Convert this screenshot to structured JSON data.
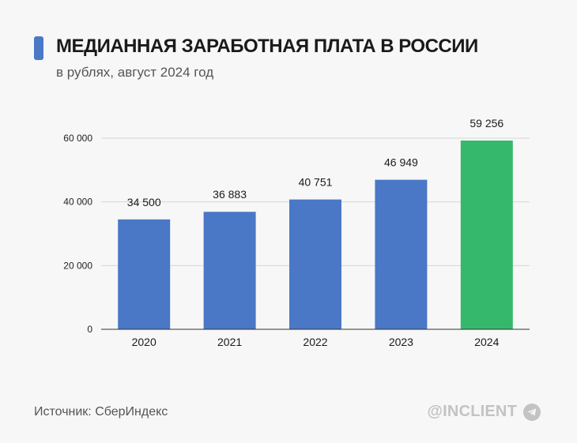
{
  "header": {
    "title": "МЕДИАННАЯ ЗАРАБОТНАЯ ПЛАТА В РОССИИ",
    "subtitle": "в рублях, август 2024 год"
  },
  "footer": {
    "source": "Источник: СберИндекс",
    "watermark": "@INCLIENT",
    "watermark_icon": "telegram-icon"
  },
  "colors": {
    "accent": "#4a78c6",
    "bar_default": "#4a78c6",
    "bar_highlight": "#35b86b"
  },
  "chart_data": {
    "type": "bar",
    "categories": [
      "2020",
      "2021",
      "2022",
      "2023",
      "2024"
    ],
    "values": [
      34500,
      36883,
      40751,
      46949,
      59256
    ],
    "value_labels": [
      "34 500",
      "36 883",
      "40 751",
      "46 949",
      "59 256"
    ],
    "highlight_index": 4,
    "y_ticks": [
      0,
      20000,
      40000,
      60000
    ],
    "y_tick_labels": [
      "0",
      "20 000",
      "40 000",
      "60 000"
    ],
    "ylim": [
      0,
      60000
    ],
    "grid": true
  }
}
